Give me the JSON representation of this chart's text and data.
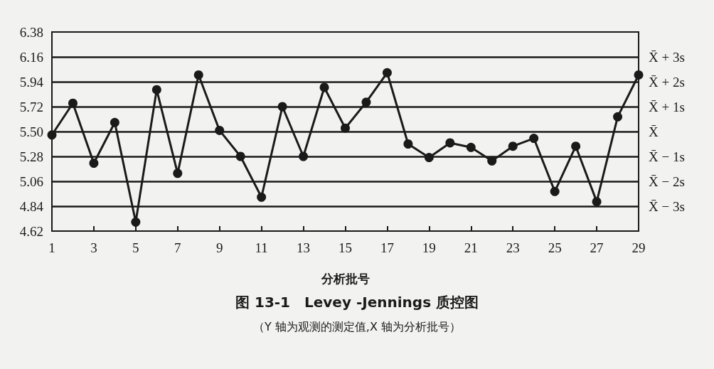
{
  "chart_data": {
    "type": "line",
    "title": "图 13-1　Levey -Jennings 质控图",
    "subtitle": "（Y 轴为观测的测定值,X 轴为分析批号）",
    "xlabel": "分析批号",
    "x": [
      1,
      2,
      3,
      4,
      5,
      6,
      7,
      8,
      9,
      10,
      11,
      12,
      13,
      14,
      15,
      16,
      17,
      18,
      19,
      20,
      21,
      22,
      23,
      24,
      25,
      26,
      27,
      28,
      29
    ],
    "series": [
      {
        "color": "#1a1a1a",
        "values": [
          5.47,
          5.75,
          5.22,
          5.58,
          4.7,
          5.87,
          5.13,
          6.0,
          5.51,
          5.28,
          4.92,
          5.72,
          5.28,
          5.89,
          5.53,
          5.76,
          6.02,
          5.39,
          5.27,
          5.4,
          5.36,
          5.24,
          5.37,
          5.44,
          4.97,
          5.37,
          4.88,
          5.63,
          6.0
        ]
      }
    ],
    "xlim": [
      1,
      29
    ],
    "xticks": [
      1,
      3,
      5,
      7,
      9,
      11,
      13,
      15,
      17,
      19,
      21,
      23,
      25,
      27,
      29
    ],
    "ylim": [
      4.62,
      6.38
    ],
    "yticks": [
      4.62,
      4.84,
      5.06,
      5.28,
      {
        "value": 5.5,
        "label": "5.50"
      },
      5.72,
      5.94,
      6.16,
      6.38
    ],
    "ref_lines": [
      {
        "axis": "y",
        "value": 6.16,
        "label": "X̄ + 3s"
      },
      {
        "axis": "y",
        "value": 5.94,
        "label": "X̄ + 2s"
      },
      {
        "axis": "y",
        "value": 5.72,
        "label": "X̄ + 1s"
      },
      {
        "axis": "y",
        "value": 5.5,
        "label": "X̄"
      },
      {
        "axis": "y",
        "value": 5.28,
        "label": "X̄ − 1s"
      },
      {
        "axis": "y",
        "value": 5.06,
        "label": "X̄ − 2s"
      },
      {
        "axis": "y",
        "value": 4.84,
        "label": "X̄ − 3s"
      }
    ],
    "grid": false,
    "marker": "circle",
    "line_style": "solid"
  }
}
